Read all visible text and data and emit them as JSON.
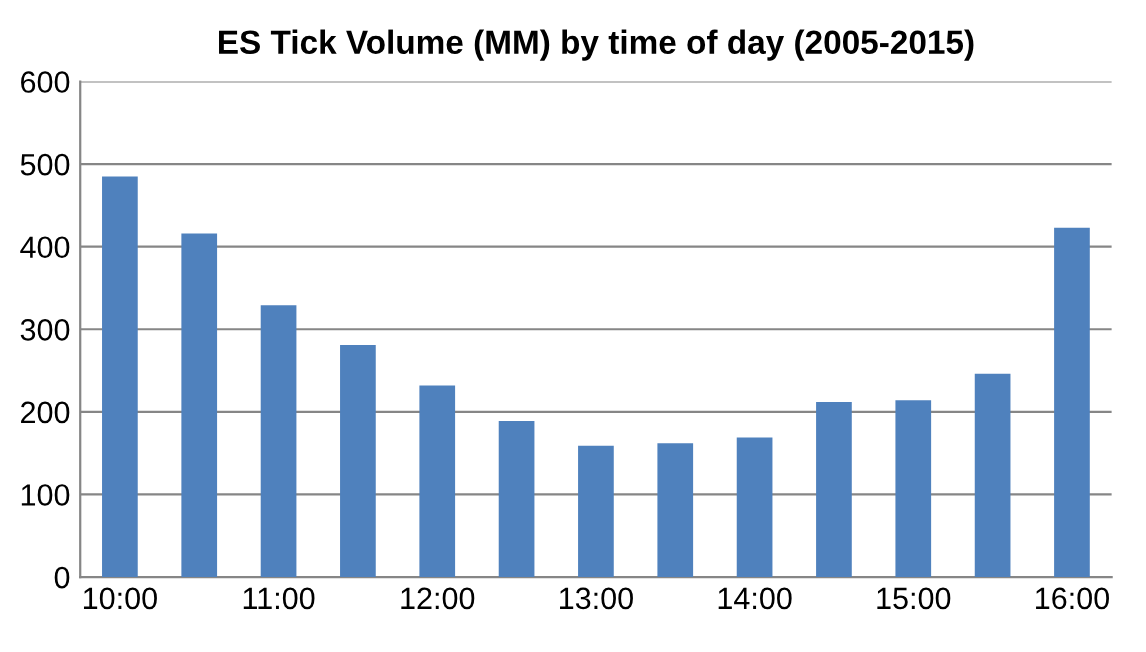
{
  "chart_data": {
    "type": "bar",
    "title": "ES Tick Volume (MM) by time of day (2005-2015)",
    "categories": [
      "10:00",
      null,
      "11:00",
      null,
      "12:00",
      null,
      "13:00",
      null,
      "14:00",
      null,
      "15:00",
      null,
      "16:00"
    ],
    "values": [
      485,
      416,
      329,
      281,
      232,
      189,
      159,
      162,
      169,
      212,
      214,
      246,
      423
    ],
    "color": "#4f81bd",
    "ylim": [
      0,
      600
    ],
    "yticks": [
      0,
      100,
      200,
      300,
      400,
      500,
      600
    ],
    "grid": "y"
  }
}
